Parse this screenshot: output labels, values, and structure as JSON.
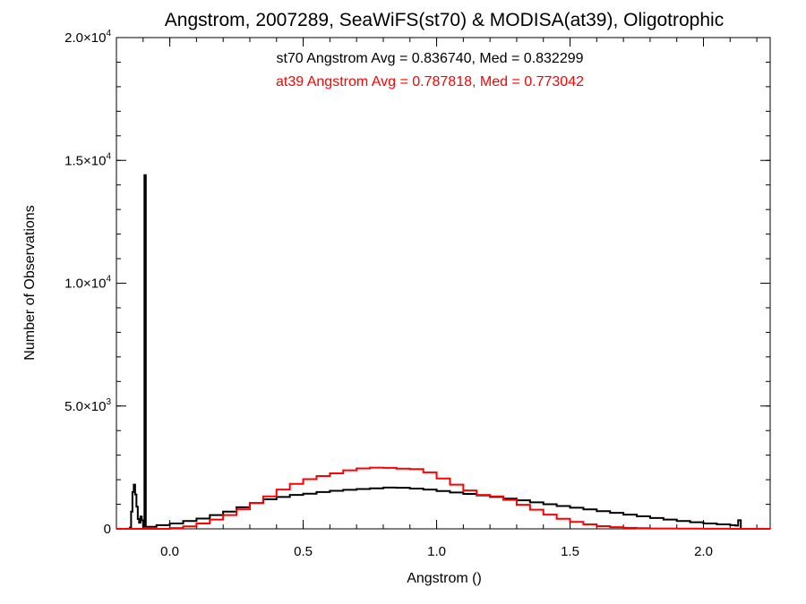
{
  "chart_data": {
    "type": "line",
    "title": "Angstrom, 2007289, SeaWiFS(st70) & MODISA(at39), Oligotrophic",
    "xlabel": "Angstrom ()",
    "ylabel": "Number of Observations",
    "xlim": [
      -0.2,
      2.25
    ],
    "ylim": [
      0,
      20000
    ],
    "x_ticks": [
      {
        "value": 0.0,
        "label": "0.0"
      },
      {
        "value": 0.5,
        "label": "0.5"
      },
      {
        "value": 1.0,
        "label": "1.0"
      },
      {
        "value": 1.5,
        "label": "1.5"
      },
      {
        "value": 2.0,
        "label": "2.0"
      }
    ],
    "y_ticks": [
      {
        "value": 0,
        "mantissa": "0",
        "exponent": ""
      },
      {
        "value": 5000,
        "mantissa": "5.0×10",
        "exponent": "3"
      },
      {
        "value": 10000,
        "mantissa": "1.0×10",
        "exponent": "4"
      },
      {
        "value": 15000,
        "mantissa": "1.5×10",
        "exponent": "4"
      },
      {
        "value": 20000,
        "mantissa": "2.0×10",
        "exponent": "4"
      }
    ],
    "x_minor_step": 0.1,
    "y_minor_step": 1000,
    "grid": false,
    "step_style": "histogram",
    "annotations": [
      {
        "text": "st70 Angstrom Avg = 0.836740, Med = 0.832299",
        "color": "#000000"
      },
      {
        "text": "at39 Angstrom Avg = 0.787818, Med = 0.773042",
        "color": "#ff0000"
      }
    ],
    "series": [
      {
        "color": "#000000",
        "points": [
          [
            -0.2,
            0
          ],
          [
            -0.18,
            0
          ],
          [
            -0.16,
            0
          ],
          [
            -0.15,
            50
          ],
          [
            -0.145,
            700
          ],
          [
            -0.14,
            1500
          ],
          [
            -0.135,
            1800
          ],
          [
            -0.13,
            1400
          ],
          [
            -0.125,
            900
          ],
          [
            -0.12,
            400
          ],
          [
            -0.115,
            250
          ],
          [
            -0.11,
            500
          ],
          [
            -0.105,
            350
          ],
          [
            -0.1,
            80
          ],
          [
            -0.095,
            14400
          ],
          [
            -0.09,
            80
          ],
          [
            -0.05,
            150
          ],
          [
            0.0,
            220
          ],
          [
            0.05,
            320
          ],
          [
            0.1,
            420
          ],
          [
            0.15,
            560
          ],
          [
            0.2,
            700
          ],
          [
            0.25,
            880
          ],
          [
            0.3,
            1050
          ],
          [
            0.35,
            1200
          ],
          [
            0.4,
            1300
          ],
          [
            0.45,
            1380
          ],
          [
            0.5,
            1430
          ],
          [
            0.55,
            1500
          ],
          [
            0.6,
            1550
          ],
          [
            0.65,
            1590
          ],
          [
            0.7,
            1620
          ],
          [
            0.75,
            1650
          ],
          [
            0.8,
            1680
          ],
          [
            0.85,
            1670
          ],
          [
            0.9,
            1640
          ],
          [
            0.95,
            1600
          ],
          [
            1.0,
            1540
          ],
          [
            1.05,
            1480
          ],
          [
            1.1,
            1420
          ],
          [
            1.15,
            1360
          ],
          [
            1.2,
            1300
          ],
          [
            1.25,
            1230
          ],
          [
            1.3,
            1160
          ],
          [
            1.35,
            1080
          ],
          [
            1.4,
            1000
          ],
          [
            1.45,
            930
          ],
          [
            1.5,
            860
          ],
          [
            1.55,
            790
          ],
          [
            1.6,
            720
          ],
          [
            1.65,
            650
          ],
          [
            1.7,
            580
          ],
          [
            1.75,
            510
          ],
          [
            1.8,
            440
          ],
          [
            1.85,
            380
          ],
          [
            1.9,
            320
          ],
          [
            1.95,
            270
          ],
          [
            2.0,
            220
          ],
          [
            2.05,
            180
          ],
          [
            2.1,
            150
          ],
          [
            2.12,
            130
          ],
          [
            2.13,
            350
          ],
          [
            2.14,
            0
          ],
          [
            2.25,
            0
          ]
        ]
      },
      {
        "color": "#ff0000",
        "points": [
          [
            -0.2,
            0
          ],
          [
            -0.1,
            0
          ],
          [
            0.0,
            30
          ],
          [
            0.05,
            100
          ],
          [
            0.1,
            220
          ],
          [
            0.15,
            380
          ],
          [
            0.2,
            560
          ],
          [
            0.25,
            790
          ],
          [
            0.3,
            1050
          ],
          [
            0.35,
            1320
          ],
          [
            0.4,
            1600
          ],
          [
            0.45,
            1830
          ],
          [
            0.5,
            2020
          ],
          [
            0.55,
            2150
          ],
          [
            0.6,
            2260
          ],
          [
            0.65,
            2380
          ],
          [
            0.7,
            2460
          ],
          [
            0.75,
            2490
          ],
          [
            0.8,
            2480
          ],
          [
            0.85,
            2450
          ],
          [
            0.9,
            2430
          ],
          [
            0.95,
            2300
          ],
          [
            1.0,
            2050
          ],
          [
            1.05,
            1800
          ],
          [
            1.1,
            1560
          ],
          [
            1.15,
            1380
          ],
          [
            1.2,
            1320
          ],
          [
            1.25,
            1180
          ],
          [
            1.3,
            980
          ],
          [
            1.35,
            780
          ],
          [
            1.4,
            580
          ],
          [
            1.45,
            410
          ],
          [
            1.5,
            280
          ],
          [
            1.55,
            180
          ],
          [
            1.6,
            110
          ],
          [
            1.65,
            70
          ],
          [
            1.7,
            40
          ],
          [
            1.75,
            25
          ],
          [
            1.8,
            15
          ],
          [
            1.9,
            8
          ],
          [
            2.0,
            4
          ],
          [
            2.1,
            2
          ],
          [
            2.25,
            0
          ]
        ]
      }
    ]
  }
}
